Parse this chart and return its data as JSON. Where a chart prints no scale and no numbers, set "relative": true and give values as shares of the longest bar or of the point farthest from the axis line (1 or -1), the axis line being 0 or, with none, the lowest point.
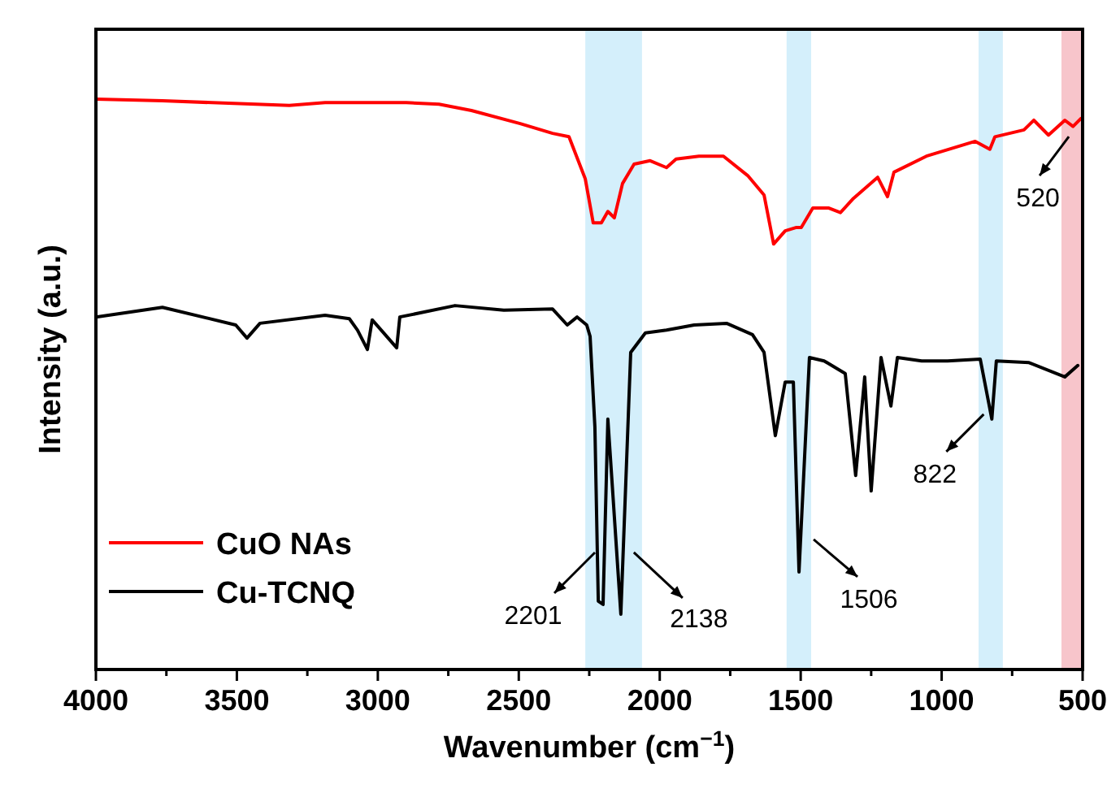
{
  "chart_data": {
    "type": "line",
    "relative": true,
    "xlabel": "Wavenumber (cm$^{−1}$)",
    "ylabel": "Intensity (a.u.)",
    "xlim": [
      4000,
      500
    ],
    "xticks": [
      4000,
      {
        "value": 3750,
        "label": null
      },
      3500,
      {
        "value": 3250,
        "label": null
      },
      3000,
      {
        "value": 2750,
        "label": null
      },
      2500,
      {
        "value": 2250,
        "label": null
      },
      2000,
      {
        "value": 1750,
        "label": null
      },
      1500,
      {
        "value": 1250,
        "label": null
      },
      1000,
      {
        "value": 750,
        "label": null
      },
      500
    ],
    "tick_labels": "x",
    "grid": false,
    "legend": "bottom left",
    "line_style": "solid",
    "bands": [
      {
        "axis": "x",
        "from": 2264,
        "to": 2063,
        "color": "#d4effb"
      },
      {
        "axis": "x",
        "from": 1550,
        "to": 1463,
        "color": "#d4effb"
      },
      {
        "axis": "x",
        "from": 869,
        "to": 783,
        "color": "#d4effb"
      },
      {
        "axis": "x",
        "from": 575,
        "to": 500,
        "color": "#f7c5cb"
      }
    ],
    "series": [
      {
        "name": "CuO NAs",
        "color": "#ff0000",
        "x": [
          4000,
          3764,
          3314,
          3187,
          3014,
          2899,
          2783,
          2668,
          2495,
          2380,
          2322,
          2264,
          2236,
          2207,
          2184,
          2161,
          2132,
          2091,
          2034,
          1976,
          1942,
          1861,
          1774,
          1688,
          1630,
          1596,
          1555,
          1515,
          1498,
          1457,
          1400,
          1359,
          1313,
          1227,
          1192,
          1169,
          1054,
          881,
          829,
          811,
          708,
          673,
          621,
          563,
          534,
          506
        ],
        "values": [
          1.0,
          0.997,
          0.989,
          0.994,
          0.994,
          0.994,
          0.991,
          0.98,
          0.957,
          0.94,
          0.934,
          0.86,
          0.783,
          0.783,
          0.803,
          0.792,
          0.852,
          0.886,
          0.892,
          0.88,
          0.895,
          0.9,
          0.9,
          0.866,
          0.832,
          0.746,
          0.769,
          0.775,
          0.775,
          0.809,
          0.809,
          0.801,
          0.826,
          0.863,
          0.829,
          0.872,
          0.9,
          0.926,
          0.912,
          0.934,
          0.946,
          0.963,
          0.937,
          0.963,
          0.952,
          0.966
        ]
      },
      {
        "name": "Cu-TCNQ",
        "color": "#000000",
        "x": [
          4000,
          3764,
          3504,
          3464,
          3418,
          3187,
          3101,
          3072,
          3037,
          3020,
          2933,
          2922,
          2726,
          2553,
          2380,
          2328,
          2293,
          2259,
          2247,
          2230,
          2218,
          2201,
          2184,
          2138,
          2103,
          2051,
          1976,
          1878,
          1763,
          1671,
          1630,
          1590,
          1555,
          1526,
          1506,
          1469,
          1417,
          1342,
          1305,
          1273,
          1250,
          1215,
          1180,
          1157,
          1071,
          979,
          863,
          822,
          806,
          690,
          563,
          517
        ],
        "values": [
          0.618,
          0.635,
          0.604,
          0.581,
          0.607,
          0.621,
          0.615,
          0.595,
          0.561,
          0.613,
          0.564,
          0.618,
          0.638,
          0.63,
          0.632,
          0.604,
          0.618,
          0.604,
          0.584,
          0.425,
          0.12,
          0.114,
          0.439,
          0.097,
          0.556,
          0.59,
          0.595,
          0.604,
          0.607,
          0.587,
          0.556,
          0.41,
          0.504,
          0.504,
          0.171,
          0.547,
          0.541,
          0.519,
          0.34,
          0.513,
          0.313,
          0.547,
          0.462,
          0.547,
          0.541,
          0.541,
          0.544,
          0.439,
          0.541,
          0.538,
          0.513,
          0.533
        ]
      }
    ],
    "annotations": [
      {
        "text": "2201",
        "x": 2201,
        "y": 0.114
      },
      {
        "text": "2138",
        "x": 2138,
        "y": 0.097
      },
      {
        "text": "1506",
        "x": 1506,
        "y": 0.171
      },
      {
        "text": "822",
        "x": 822,
        "y": 0.439
      },
      {
        "text": "520",
        "x": 520,
        "y": 0.957
      }
    ]
  }
}
